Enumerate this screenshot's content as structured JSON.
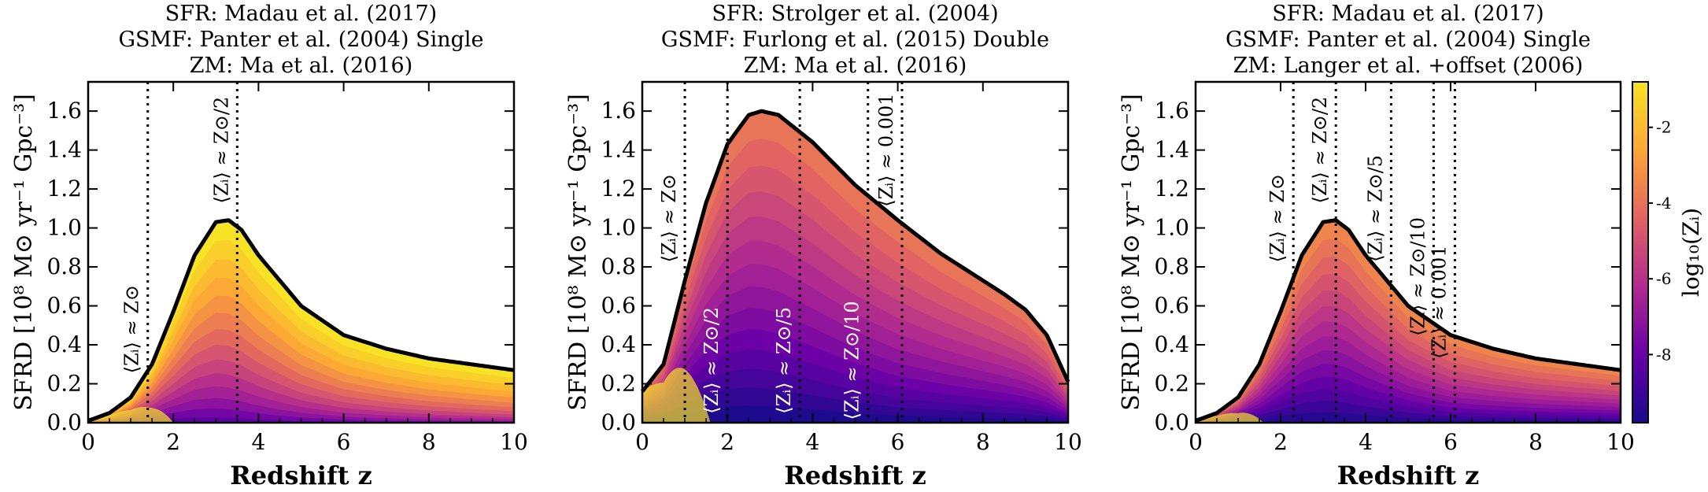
{
  "colors": {
    "accent_low": "#1a0a8c",
    "accent_high": "#f7e225",
    "curve": "#000000",
    "vline": "#000000"
  },
  "chart_data": [
    {
      "type": "area",
      "title_lines": [
        "SFR: Madau et al. (2017)",
        "GSMF: Panter et al. (2004) Single",
        "ZM: Ma et al. (2016)"
      ],
      "xlabel": "Redshift z",
      "ylabel": "SFRD [10⁸ M⊙ yr⁻¹ Gpc⁻³]",
      "xlim": [
        0,
        10
      ],
      "ylim": [
        0,
        1.75
      ],
      "xticks": [
        0,
        2,
        4,
        6,
        8,
        10
      ],
      "yticks": [
        0.0,
        0.2,
        0.4,
        0.6,
        0.8,
        1.0,
        1.2,
        1.4,
        1.6
      ],
      "curve": {
        "x": [
          0,
          0.5,
          1,
          1.5,
          2,
          2.5,
          3,
          3.3,
          3.6,
          4,
          5,
          6,
          7,
          8,
          9,
          10
        ],
        "y": [
          0.01,
          0.05,
          0.13,
          0.3,
          0.57,
          0.86,
          1.03,
          1.04,
          0.99,
          0.86,
          0.6,
          0.45,
          0.38,
          0.33,
          0.3,
          0.27
        ]
      },
      "fill_bands": 14,
      "palette_shift": 0.0,
      "flat_low": false,
      "annotations": [
        {
          "x": 1.4,
          "label": "⟨Zᵢ⟩ ≈ Z⊙",
          "label_y": 0.48,
          "color": "#000000"
        },
        {
          "x": 3.5,
          "label": "⟨Zᵢ⟩ ≈ Z⊙/2",
          "label_y": 1.4,
          "color": "#000000"
        }
      ]
    },
    {
      "type": "area",
      "title_lines": [
        "SFR: Strolger et al. (2004)",
        "GSMF: Furlong et al. (2015) Double",
        "ZM: Ma et al. (2016)"
      ],
      "xlabel": "Redshift z",
      "ylabel": "SFRD [10⁸ M⊙ yr⁻¹ Gpc⁻³]",
      "xlim": [
        0,
        10
      ],
      "ylim": [
        0,
        1.75
      ],
      "xticks": [
        0,
        2,
        4,
        6,
        8,
        10
      ],
      "yticks": [
        0.0,
        0.2,
        0.4,
        0.6,
        0.8,
        1.0,
        1.2,
        1.4,
        1.6
      ],
      "curve": {
        "x": [
          0,
          0.5,
          1,
          1.5,
          2,
          2.5,
          2.8,
          3.2,
          4,
          5,
          6,
          7,
          8,
          8.5,
          9,
          9.5,
          10
        ],
        "y": [
          0.16,
          0.3,
          0.73,
          1.13,
          1.43,
          1.58,
          1.6,
          1.58,
          1.44,
          1.22,
          1.04,
          0.87,
          0.73,
          0.66,
          0.58,
          0.45,
          0.21
        ]
      },
      "fill_bands": 14,
      "palette_shift": 0.35,
      "flat_low": true,
      "annotations": [
        {
          "x": 1.0,
          "label": "⟨Zᵢ⟩ ≈ Z⊙",
          "label_y": 1.05,
          "color": "#000000"
        },
        {
          "x": 2.0,
          "label": "⟨Zᵢ⟩ ≈ Z⊙/2",
          "label_y": 0.32,
          "color": "#ffffff"
        },
        {
          "x": 3.7,
          "label": "⟨Zᵢ⟩ ≈ Z⊙/5",
          "label_y": 0.32,
          "color": "#ffffff"
        },
        {
          "x": 5.3,
          "label": "⟨Zᵢ⟩ ≈ Z⊙/10",
          "label_y": 0.32,
          "color": "#ffffff"
        },
        {
          "x": 6.1,
          "label": "⟨Zᵢ⟩ ≈ 0.001",
          "label_y": 1.4,
          "color": "#000000"
        }
      ]
    },
    {
      "type": "area",
      "title_lines": [
        "SFR: Madau et al. (2017)",
        "GSMF: Panter et al. (2004) Single",
        "ZM: Langer et al. +offset (2006)"
      ],
      "xlabel": "Redshift z",
      "ylabel": "SFRD [10⁸ M⊙ yr⁻¹ Gpc⁻³]",
      "xlim": [
        0,
        10
      ],
      "ylim": [
        0,
        1.75
      ],
      "xticks": [
        0,
        2,
        4,
        6,
        8,
        10
      ],
      "yticks": [
        0.0,
        0.2,
        0.4,
        0.6,
        0.8,
        1.0,
        1.2,
        1.4,
        1.6
      ],
      "curve": {
        "x": [
          0,
          0.5,
          1,
          1.5,
          2,
          2.5,
          3,
          3.3,
          3.6,
          4,
          5,
          6,
          7,
          8,
          9,
          10
        ],
        "y": [
          0.01,
          0.05,
          0.13,
          0.3,
          0.57,
          0.86,
          1.03,
          1.04,
          0.99,
          0.86,
          0.6,
          0.45,
          0.38,
          0.33,
          0.3,
          0.27
        ]
      },
      "fill_bands": 14,
      "palette_shift": 0.3,
      "flat_low": true,
      "annotations": [
        {
          "x": 2.3,
          "label": "⟨Zᵢ⟩ ≈ Z⊙",
          "label_y": 1.05,
          "color": "#000000"
        },
        {
          "x": 3.3,
          "label": "⟨Zᵢ⟩ ≈ Z⊙/2",
          "label_y": 1.4,
          "color": "#000000"
        },
        {
          "x": 4.6,
          "label": "⟨Zᵢ⟩ ≈ Z⊙/5",
          "label_y": 1.1,
          "color": "#000000"
        },
        {
          "x": 5.6,
          "label": "⟨Zᵢ⟩ ≈ Z⊙/10",
          "label_y": 0.75,
          "color": "#000000"
        },
        {
          "x": 6.1,
          "label": "⟨Zᵢ⟩ ≈ 0.001",
          "label_y": 0.62,
          "color": "#000000"
        }
      ]
    }
  ],
  "colorbar": {
    "label": "log₁₀(Zᵢ)",
    "range": [
      -9.8,
      -0.8
    ],
    "ticks": [
      -2,
      -4,
      -6,
      -8
    ]
  }
}
